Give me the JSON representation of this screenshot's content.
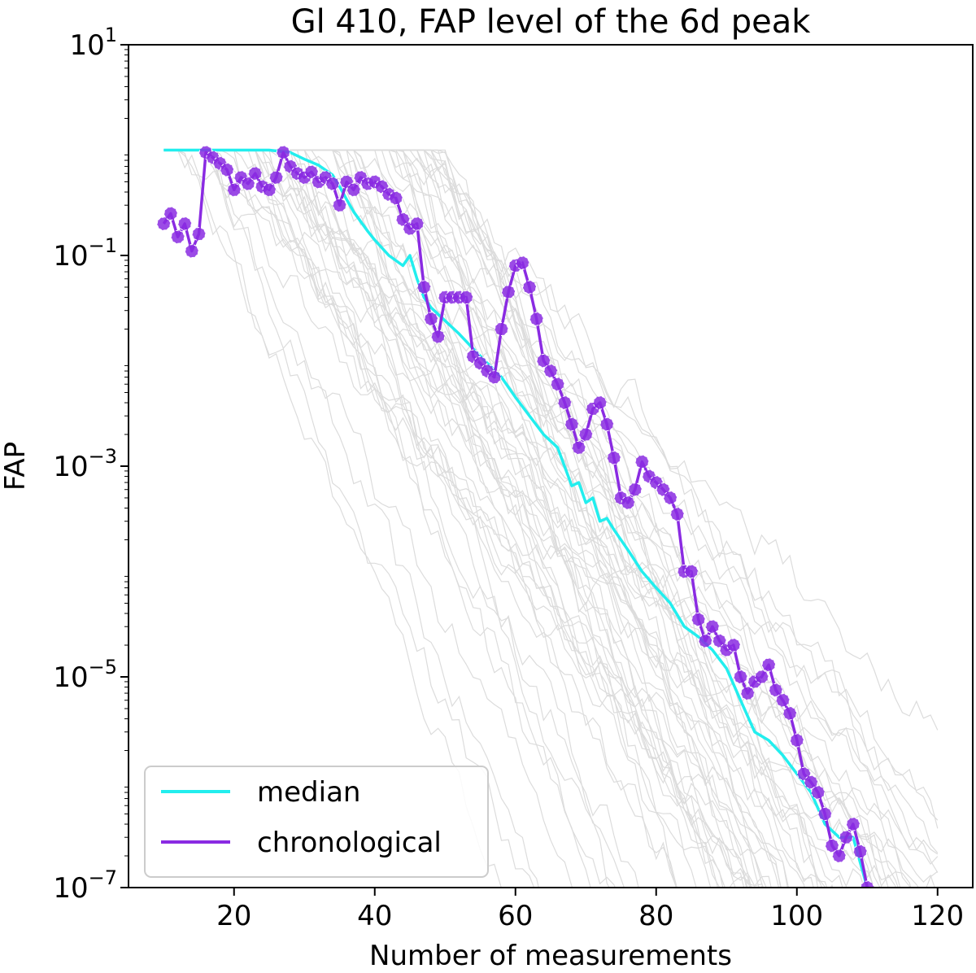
{
  "chart_data": {
    "type": "line",
    "title": "Gl 410, FAP level of the 6d peak",
    "xlabel": "Number of measurements",
    "ylabel": "FAP",
    "xlim": [
      5,
      125
    ],
    "ylim": [
      1e-07,
      10
    ],
    "yscale": "log",
    "xticks": [
      {
        "value": 20,
        "label": "20"
      },
      {
        "value": 40,
        "label": "40"
      },
      {
        "value": 60,
        "label": "60"
      },
      {
        "value": 80,
        "label": "80"
      },
      {
        "value": 100,
        "label": "100"
      },
      {
        "value": 120,
        "label": "120"
      }
    ],
    "yticks": [
      {
        "value": 10,
        "base": "10",
        "exp": "1"
      },
      {
        "value": 0.1,
        "base": "10",
        "exp": "−1"
      },
      {
        "value": 0.001,
        "base": "10",
        "exp": "−3"
      },
      {
        "value": 1e-05,
        "base": "10",
        "exp": "−5"
      },
      {
        "value": 1e-07,
        "base": "10",
        "exp": "−7"
      }
    ],
    "legend": {
      "placement": "lower-left",
      "entries": [
        "median",
        "chronological"
      ]
    },
    "series": [
      {
        "name": "median",
        "color": "#22eeee",
        "x": [
          10,
          16,
          20,
          25,
          28,
          30,
          32,
          34,
          35,
          36,
          37,
          38,
          39,
          40,
          42,
          44,
          45,
          46,
          47,
          48,
          50,
          52,
          54,
          56,
          58,
          60,
          62,
          64,
          66,
          68,
          69,
          70,
          71,
          72,
          73,
          74,
          76,
          78,
          80,
          82,
          84,
          86,
          88,
          90,
          92,
          94,
          96,
          98,
          100,
          102,
          104,
          106,
          108,
          110
        ],
        "y": [
          1.0,
          1.0,
          1.0,
          1.0,
          0.95,
          0.82,
          0.72,
          0.58,
          0.45,
          0.34,
          0.26,
          0.21,
          0.17,
          0.14,
          0.1,
          0.08,
          0.1,
          0.06,
          0.04,
          0.032,
          0.024,
          0.018,
          0.013,
          0.0095,
          0.007,
          0.0045,
          0.003,
          0.002,
          0.0015,
          0.00065,
          0.0007,
          0.00045,
          0.0005,
          0.0003,
          0.00032,
          0.00025,
          0.00016,
          0.0001,
          7e-05,
          5e-05,
          3e-05,
          2.4e-05,
          1.8e-05,
          1.2e-05,
          6e-06,
          3e-06,
          2.5e-06,
          1.8e-06,
          1.2e-06,
          8e-07,
          4e-07,
          3e-07,
          3e-07,
          1e-07
        ]
      },
      {
        "name": "chronological",
        "color": "#8a2be2",
        "x": [
          10,
          11,
          12,
          13,
          14,
          15,
          16,
          17,
          18,
          19,
          20,
          21,
          22,
          23,
          24,
          25,
          26,
          27,
          28,
          29,
          30,
          31,
          32,
          33,
          34,
          35,
          36,
          37,
          38,
          39,
          40,
          41,
          42,
          43,
          44,
          45,
          46,
          47,
          48,
          49,
          50,
          51,
          52,
          53,
          54,
          55,
          56,
          57,
          58,
          59,
          60,
          61,
          62,
          63,
          64,
          65,
          66,
          67,
          68,
          69,
          70,
          71,
          72,
          73,
          74,
          75,
          76,
          77,
          78,
          79,
          80,
          81,
          82,
          83,
          84,
          85,
          86,
          87,
          88,
          89,
          90,
          91,
          92,
          93,
          94,
          95,
          96,
          97,
          98,
          99,
          100,
          101,
          102,
          103,
          104,
          105,
          106,
          107,
          108,
          109,
          110
        ],
        "y": [
          0.2,
          0.25,
          0.15,
          0.2,
          0.11,
          0.16,
          0.95,
          0.85,
          0.75,
          0.65,
          0.42,
          0.55,
          0.48,
          0.6,
          0.45,
          0.42,
          0.55,
          0.95,
          0.7,
          0.6,
          0.55,
          0.62,
          0.5,
          0.55,
          0.48,
          0.3,
          0.5,
          0.42,
          0.55,
          0.48,
          0.5,
          0.45,
          0.38,
          0.35,
          0.22,
          0.18,
          0.2,
          0.05,
          0.025,
          0.017,
          0.04,
          0.04,
          0.04,
          0.04,
          0.011,
          0.0095,
          0.008,
          0.007,
          0.02,
          0.045,
          0.08,
          0.085,
          0.05,
          0.025,
          0.01,
          0.008,
          0.006,
          0.004,
          0.0025,
          0.0015,
          0.002,
          0.0035,
          0.004,
          0.0025,
          0.0012,
          0.0005,
          0.00045,
          0.0006,
          0.0011,
          0.0008,
          0.0007,
          0.0006,
          0.0005,
          0.00035,
          0.0001,
          0.0001,
          3.5e-05,
          2.2e-05,
          3e-05,
          2.2e-05,
          1.8e-05,
          2e-05,
          1e-05,
          7e-06,
          9e-06,
          1e-05,
          1.3e-05,
          7.5e-06,
          6e-06,
          4.5e-06,
          2.5e-06,
          1.2e-06,
          1e-06,
          8e-07,
          5e-07,
          2.5e-07,
          2e-07,
          3e-07,
          4e-07,
          2.2e-07,
          1e-07
        ]
      }
    ]
  }
}
